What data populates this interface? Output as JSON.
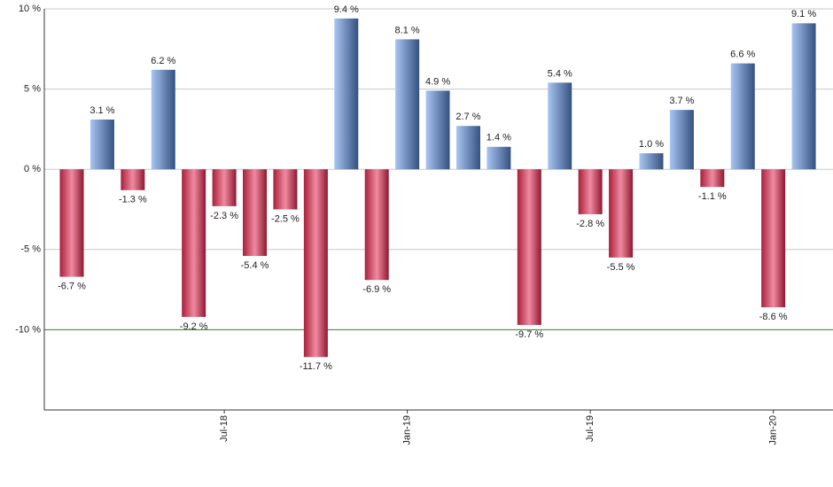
{
  "chart_data": {
    "type": "bar",
    "categories": [
      null,
      null,
      null,
      null,
      null,
      "Jul-18",
      null,
      null,
      null,
      null,
      null,
      "Jan-19",
      null,
      null,
      null,
      null,
      null,
      "Jul-19",
      null,
      null,
      null,
      null,
      null,
      "Jan-20",
      null
    ],
    "values": [
      -6.7,
      3.1,
      -1.3,
      6.2,
      -9.2,
      -2.3,
      -5.4,
      -2.5,
      -11.7,
      9.4,
      -6.9,
      8.1,
      4.9,
      2.7,
      1.4,
      -9.7,
      5.4,
      -2.8,
      -5.5,
      1.0,
      3.7,
      -1.1,
      6.6,
      -8.6,
      9.1
    ],
    "value_labels": [
      "-6.7 %",
      "3.1 %",
      "-1.3 %",
      "6.2 %",
      "-9.2 %",
      "-2.3 %",
      "-5.4 %",
      "-2.5 %",
      "-11.7 %",
      "9.4 %",
      "-6.9 %",
      "8.1 %",
      "4.9 %",
      "2.7 %",
      "1.4 %",
      "-9.7 %",
      "5.4 %",
      "-2.8 %",
      "-5.5 %",
      "1.0 %",
      "3.7 %",
      "-1.1 %",
      "6.6 %",
      "-8.6 %",
      "9.1 %"
    ],
    "positive_color": [
      "#a9c5f3",
      "#34517f"
    ],
    "negative_color": [
      "#a8203a",
      "#f08aa0",
      "#8e1830"
    ],
    "ylim": [
      -15,
      10
    ],
    "yticks": [
      {
        "value": 10,
        "label": "10 %"
      },
      {
        "value": 5,
        "label": "5 %"
      },
      {
        "value": 0,
        "label": "0 %"
      },
      {
        "value": -5,
        "label": "-5 %"
      },
      {
        "value": -10,
        "label": "-10 %"
      }
    ],
    "grid": true,
    "reference_line": {
      "value": -10,
      "color": "#2e7d2e"
    }
  }
}
